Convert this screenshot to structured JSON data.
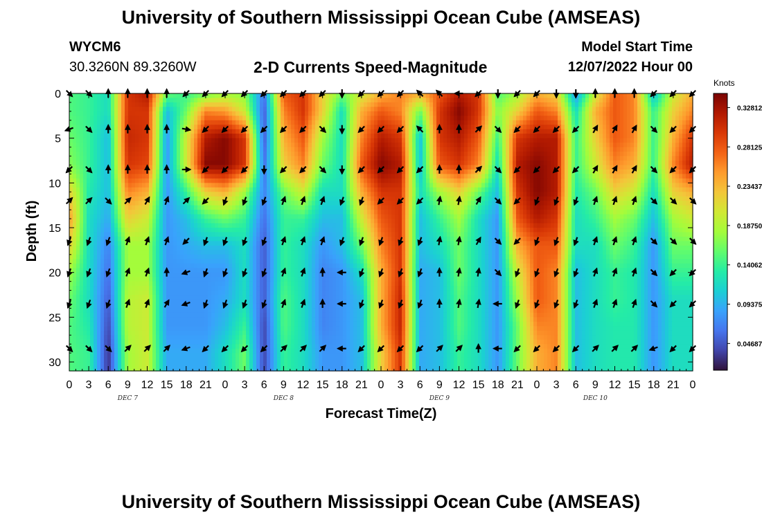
{
  "page": {
    "title": "University of Southern Mississippi Ocean Cube (AMSEAS)",
    "station": "WYCM6",
    "coordinates": "30.3260N  89.3260W",
    "model_start_label": "Model Start Time",
    "model_start_value": "12/07/2022 Hour 00",
    "footer_title": "University of Southern Mississippi Ocean Cube (AMSEAS)"
  },
  "chart_data": {
    "type": "heatmap",
    "title": "2-D Currents Speed-Magnitude",
    "xlabel": "Forecast Time(Z)",
    "ylabel": "Depth (ft)",
    "x_ticks": [
      "0",
      "3",
      "6",
      "9",
      "12",
      "15",
      "18",
      "21",
      "0",
      "3",
      "6",
      "9",
      "12",
      "15",
      "18",
      "21",
      "0",
      "3",
      "6",
      "9",
      "12",
      "15",
      "18",
      "21",
      "0",
      "3",
      "6",
      "9",
      "12",
      "15",
      "18",
      "21",
      "0"
    ],
    "x_range_hours": [
      0,
      96
    ],
    "day_labels": [
      {
        "label": "DEC 7",
        "hour": 9
      },
      {
        "label": "DEC 8",
        "hour": 33
      },
      {
        "label": "DEC 9",
        "hour": 57
      },
      {
        "label": "DEC 10",
        "hour": 81
      }
    ],
    "y_ticks": [
      0,
      5,
      10,
      15,
      20,
      25,
      30
    ],
    "y_range_ft": [
      0,
      31
    ],
    "y_inverted": true,
    "colorbar": {
      "units": "Knots",
      "range": [
        0.015,
        0.345
      ],
      "ticks": [
        "0.32812",
        "0.28125",
        "0.23437",
        "0.18750",
        "0.14062",
        "0.09375",
        "0.04687"
      ],
      "tick_values": [
        0.32812,
        0.28125,
        0.23437,
        0.1875,
        0.14062,
        0.09375,
        0.04687
      ],
      "colors": [
        "#30123b",
        "#4145ab",
        "#4675ed",
        "#39a2fc",
        "#1bcfd4",
        "#24eca6",
        "#61fc6c",
        "#a4fc3b",
        "#d1e834",
        "#f3c63a",
        "#fe9b2d",
        "#f36315",
        "#d93806",
        "#b11901",
        "#7a0403"
      ]
    },
    "arrow_hours": [
      0,
      3,
      6,
      9,
      12,
      15,
      18,
      21,
      24,
      27,
      30,
      33,
      36,
      39,
      42,
      45,
      48,
      51,
      54,
      57,
      60,
      63,
      66,
      69,
      72,
      75,
      78,
      81,
      84,
      87,
      90,
      93,
      96
    ],
    "arrow_depths_ft": [
      0,
      4,
      8.5,
      12,
      16.5,
      20,
      23.5,
      28.5
    ],
    "anchor_speeds": {
      "depths_ft": [
        0,
        2,
        5,
        8,
        11,
        14,
        17,
        20,
        23,
        26,
        29,
        31
      ],
      "hours": [
        0,
        3,
        6,
        9,
        12,
        15,
        18,
        21,
        24,
        27,
        30,
        33,
        36,
        39,
        42,
        45,
        48,
        51,
        54,
        57,
        60,
        63,
        66,
        69,
        72,
        75,
        78,
        81,
        84,
        87,
        90,
        93,
        96
      ],
      "rows": [
        [
          0.15,
          0.14,
          0.12,
          0.3,
          0.32,
          0.16,
          0.14,
          0.16,
          0.18,
          0.17,
          0.06,
          0.28,
          0.3,
          0.22,
          0.16,
          0.2,
          0.24,
          0.26,
          0.24,
          0.28,
          0.32,
          0.3,
          0.15,
          0.18,
          0.24,
          0.22,
          0.08,
          0.2,
          0.28,
          0.26,
          0.1,
          0.2,
          0.24
        ],
        [
          0.15,
          0.14,
          0.12,
          0.3,
          0.3,
          0.1,
          0.16,
          0.26,
          0.25,
          0.2,
          0.05,
          0.26,
          0.3,
          0.22,
          0.12,
          0.24,
          0.28,
          0.26,
          0.16,
          0.3,
          0.34,
          0.3,
          0.17,
          0.22,
          0.28,
          0.26,
          0.12,
          0.24,
          0.28,
          0.26,
          0.14,
          0.22,
          0.26
        ],
        [
          0.16,
          0.14,
          0.1,
          0.31,
          0.3,
          0.08,
          0.2,
          0.32,
          0.34,
          0.3,
          0.05,
          0.24,
          0.28,
          0.18,
          0.12,
          0.26,
          0.32,
          0.3,
          0.1,
          0.3,
          0.32,
          0.28,
          0.14,
          0.3,
          0.32,
          0.32,
          0.14,
          0.22,
          0.28,
          0.26,
          0.14,
          0.24,
          0.3
        ],
        [
          0.17,
          0.14,
          0.1,
          0.3,
          0.29,
          0.08,
          0.2,
          0.34,
          0.34,
          0.3,
          0.06,
          0.22,
          0.26,
          0.16,
          0.12,
          0.28,
          0.34,
          0.32,
          0.1,
          0.28,
          0.3,
          0.26,
          0.12,
          0.32,
          0.34,
          0.32,
          0.14,
          0.2,
          0.26,
          0.24,
          0.14,
          0.26,
          0.32
        ],
        [
          0.22,
          0.13,
          0.1,
          0.26,
          0.24,
          0.08,
          0.14,
          0.22,
          0.24,
          0.18,
          0.07,
          0.16,
          0.2,
          0.12,
          0.12,
          0.24,
          0.3,
          0.3,
          0.12,
          0.18,
          0.22,
          0.16,
          0.1,
          0.3,
          0.34,
          0.32,
          0.13,
          0.16,
          0.22,
          0.2,
          0.12,
          0.22,
          0.24
        ],
        [
          0.25,
          0.12,
          0.09,
          0.22,
          0.2,
          0.08,
          0.1,
          0.14,
          0.16,
          0.14,
          0.06,
          0.14,
          0.14,
          0.1,
          0.1,
          0.2,
          0.28,
          0.3,
          0.1,
          0.14,
          0.18,
          0.12,
          0.08,
          0.28,
          0.32,
          0.3,
          0.12,
          0.14,
          0.18,
          0.16,
          0.1,
          0.18,
          0.2
        ],
        [
          0.22,
          0.12,
          0.07,
          0.18,
          0.18,
          0.08,
          0.09,
          0.1,
          0.1,
          0.12,
          0.05,
          0.14,
          0.12,
          0.08,
          0.1,
          0.16,
          0.26,
          0.3,
          0.1,
          0.12,
          0.16,
          0.12,
          0.08,
          0.24,
          0.28,
          0.28,
          0.12,
          0.12,
          0.16,
          0.14,
          0.08,
          0.16,
          0.16
        ],
        [
          0.18,
          0.12,
          0.06,
          0.18,
          0.18,
          0.08,
          0.08,
          0.08,
          0.08,
          0.12,
          0.05,
          0.14,
          0.12,
          0.07,
          0.08,
          0.12,
          0.24,
          0.3,
          0.09,
          0.1,
          0.16,
          0.12,
          0.08,
          0.2,
          0.28,
          0.26,
          0.1,
          0.12,
          0.14,
          0.13,
          0.08,
          0.14,
          0.14
        ],
        [
          0.16,
          0.12,
          0.05,
          0.19,
          0.2,
          0.08,
          0.08,
          0.08,
          0.09,
          0.12,
          0.05,
          0.15,
          0.12,
          0.07,
          0.08,
          0.1,
          0.24,
          0.31,
          0.09,
          0.1,
          0.15,
          0.12,
          0.08,
          0.18,
          0.28,
          0.26,
          0.1,
          0.12,
          0.14,
          0.13,
          0.08,
          0.12,
          0.12
        ],
        [
          0.15,
          0.13,
          0.04,
          0.19,
          0.2,
          0.08,
          0.08,
          0.08,
          0.1,
          0.14,
          0.04,
          0.15,
          0.12,
          0.07,
          0.08,
          0.1,
          0.24,
          0.31,
          0.09,
          0.1,
          0.15,
          0.12,
          0.08,
          0.16,
          0.26,
          0.26,
          0.1,
          0.12,
          0.13,
          0.13,
          0.08,
          0.12,
          0.12
        ],
        [
          0.15,
          0.14,
          0.03,
          0.18,
          0.2,
          0.09,
          0.09,
          0.09,
          0.12,
          0.16,
          0.04,
          0.14,
          0.12,
          0.08,
          0.08,
          0.1,
          0.22,
          0.3,
          0.09,
          0.1,
          0.14,
          0.12,
          0.08,
          0.16,
          0.24,
          0.26,
          0.1,
          0.12,
          0.13,
          0.13,
          0.08,
          0.12,
          0.12
        ],
        [
          0.15,
          0.14,
          0.03,
          0.18,
          0.2,
          0.09,
          0.09,
          0.09,
          0.12,
          0.16,
          0.04,
          0.14,
          0.12,
          0.08,
          0.08,
          0.1,
          0.22,
          0.3,
          0.09,
          0.1,
          0.14,
          0.12,
          0.08,
          0.16,
          0.24,
          0.26,
          0.1,
          0.12,
          0.13,
          0.13,
          0.08,
          0.12,
          0.12
        ]
      ]
    },
    "anchor_directions_deg": {
      "depth_rows": [
        0,
        4,
        8.5,
        12,
        16.5,
        20,
        23.5,
        28.5
      ],
      "rows": [
        [
          135,
          135,
          0,
          0,
          0,
          0,
          225,
          225,
          225,
          225,
          225,
          225,
          225,
          225,
          180,
          225,
          225,
          225,
          315,
          315,
          270,
          225,
          180,
          225,
          225,
          180,
          180,
          0,
          0,
          0,
          225,
          225,
          225
        ],
        [
          250,
          135,
          0,
          0,
          0,
          0,
          100,
          225,
          225,
          225,
          225,
          225,
          225,
          135,
          180,
          225,
          225,
          225,
          315,
          0,
          0,
          45,
          135,
          225,
          225,
          225,
          225,
          30,
          30,
          30,
          135,
          225,
          225
        ],
        [
          225,
          135,
          0,
          0,
          0,
          0,
          90,
          225,
          225,
          225,
          180,
          225,
          225,
          135,
          180,
          225,
          225,
          225,
          225,
          0,
          0,
          45,
          135,
          225,
          225,
          225,
          225,
          30,
          30,
          30,
          135,
          225,
          225
        ],
        [
          45,
          45,
          135,
          45,
          30,
          20,
          45,
          225,
          200,
          200,
          200,
          20,
          20,
          20,
          200,
          200,
          225,
          225,
          225,
          10,
          10,
          30,
          135,
          225,
          200,
          200,
          200,
          20,
          20,
          20,
          135,
          135,
          135
        ],
        [
          200,
          200,
          200,
          20,
          20,
          20,
          225,
          200,
          200,
          200,
          200,
          20,
          20,
          20,
          200,
          200,
          200,
          200,
          200,
          10,
          10,
          30,
          135,
          225,
          200,
          200,
          200,
          20,
          20,
          20,
          135,
          135,
          135
        ],
        [
          200,
          200,
          200,
          20,
          20,
          0,
          250,
          200,
          200,
          200,
          200,
          20,
          20,
          0,
          270,
          200,
          200,
          200,
          200,
          0,
          10,
          10,
          135,
          200,
          200,
          200,
          200,
          20,
          20,
          20,
          135,
          225,
          225
        ],
        [
          200,
          200,
          200,
          20,
          20,
          30,
          250,
          200,
          200,
          200,
          200,
          20,
          20,
          0,
          270,
          200,
          200,
          200,
          200,
          0,
          10,
          10,
          270,
          200,
          200,
          200,
          200,
          20,
          20,
          20,
          135,
          225,
          225
        ],
        [
          135,
          135,
          135,
          45,
          45,
          45,
          250,
          225,
          225,
          225,
          225,
          45,
          45,
          45,
          270,
          225,
          225,
          225,
          225,
          45,
          45,
          0,
          270,
          225,
          225,
          225,
          225,
          45,
          45,
          45,
          250,
          225,
          225
        ]
      ]
    }
  }
}
